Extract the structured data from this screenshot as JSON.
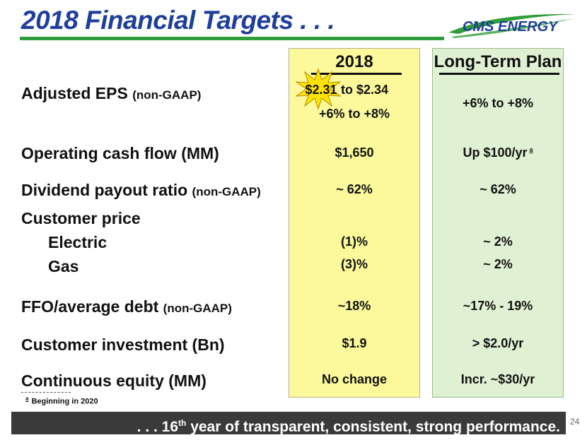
{
  "title": "2018 Financial Targets . . .",
  "logo": {
    "text": "CMS ENERGY",
    "color": "#1f3f9a",
    "swoosh_color": "#2e9e3a"
  },
  "columns": {
    "year": "2018",
    "long_term": "Long-Term Plan"
  },
  "rows": {
    "eps": {
      "label": "Adjusted EPS",
      "qualifier": "(non-GAAP)",
      "value_2018_low": "$2.31",
      "value_2018_high": "to $2.34",
      "value_2018_growth": "+6% to +8%",
      "value_ltp": "+6% to +8%"
    },
    "ocf": {
      "label": "Operating cash flow (MM)",
      "value_2018": "$1,650",
      "value_ltp": "Up $100/yr",
      "footnote_mark": "a"
    },
    "payout": {
      "label": "Dividend payout ratio",
      "qualifier": "(non-GAAP)",
      "value_2018": "~ 62%",
      "value_ltp": "~ 62%"
    },
    "price": {
      "label": "Customer price"
    },
    "electric": {
      "label": "Electric",
      "value_2018": "(1)%",
      "value_ltp": "~ 2%"
    },
    "gas": {
      "label": "Gas",
      "value_2018": "(3)%",
      "value_ltp": "~ 2%"
    },
    "ffo": {
      "label": "FFO/average debt",
      "qualifier": "(non-GAAP)",
      "value_2018": "~18%",
      "value_ltp": "~17% - 19%"
    },
    "investment": {
      "label": "Customer investment (Bn)",
      "value_2018": "$1.9",
      "value_ltp": "> $2.0/yr"
    },
    "equity": {
      "label": "Continuous equity (MM)",
      "value_2018": "No change",
      "value_ltp": "Incr. ~$30/yr"
    }
  },
  "footnote": {
    "mark": "a",
    "text": "Beginning in 2020"
  },
  "banner": {
    "prefix": ". . . 16",
    "sup": "th",
    "suffix": " year of transparent, consistent, strong performance."
  },
  "page_number": "24",
  "colors": {
    "title": "#1f3f9a",
    "accent_green": "#2e9e3a",
    "col_2018_bg": "#fbf99c",
    "col_ltp_bg": "#dff0d3",
    "starburst": "#ffe300",
    "banner_bg": "#3a3a3a"
  }
}
